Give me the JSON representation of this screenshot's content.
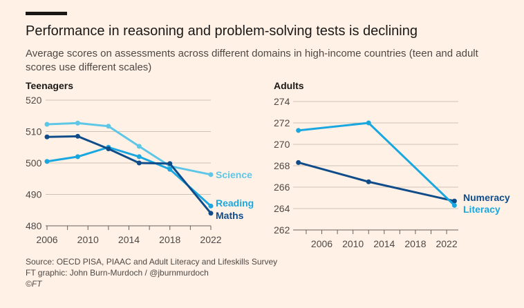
{
  "title": "Performance in reasoning and problem-solving tests is declining",
  "subtitle": "Average scores on assessments across different domains in high-income countries (teen and adult scores use different scales)",
  "footer": {
    "source": "Source: OECD PISA, PIAAC and Adult Literacy and Lifeskills Survey",
    "credit": "FT graphic: John Burn-Murdoch / @jburnmurdoch",
    "copyright": "©FT"
  },
  "chart_data": [
    {
      "type": "line",
      "title": "Teenagers",
      "xlim": [
        2006,
        2022
      ],
      "ylim": [
        480,
        520
      ],
      "xticks": [
        2006,
        2010,
        2014,
        2018,
        2022
      ],
      "yticks": [
        480,
        490,
        500,
        510,
        520
      ],
      "x": [
        2006,
        2009,
        2012,
        2015,
        2018,
        2022
      ],
      "series": [
        {
          "name": "Science",
          "color": "#5ec6e6",
          "values": [
            512.3,
            512.7,
            511.7,
            505.3,
            499.0,
            496.3
          ]
        },
        {
          "name": "Reading",
          "color": "#1aa7e0",
          "values": [
            500.5,
            502.0,
            505.0,
            502.0,
            498.0,
            486.3
          ]
        },
        {
          "name": "Maths",
          "color": "#0f4c8a",
          "values": [
            508.3,
            508.5,
            504.5,
            500.0,
            499.8,
            484.0
          ]
        }
      ]
    },
    {
      "type": "line",
      "title": "Adults",
      "xlim": [
        2002.5,
        2023.5
      ],
      "ylim": [
        262,
        274
      ],
      "xticks": [
        2006,
        2010,
        2014,
        2018,
        2022
      ],
      "yticks": [
        262,
        264,
        266,
        268,
        270,
        272,
        274
      ],
      "x": [
        2003,
        2012,
        2023
      ],
      "series": [
        {
          "name": "Numeracy",
          "color": "#0f4c8a",
          "values": [
            268.3,
            266.5,
            264.7
          ]
        },
        {
          "name": "Literacy",
          "color": "#1aa7e0",
          "values": [
            271.3,
            272.0,
            264.3
          ]
        }
      ]
    }
  ]
}
